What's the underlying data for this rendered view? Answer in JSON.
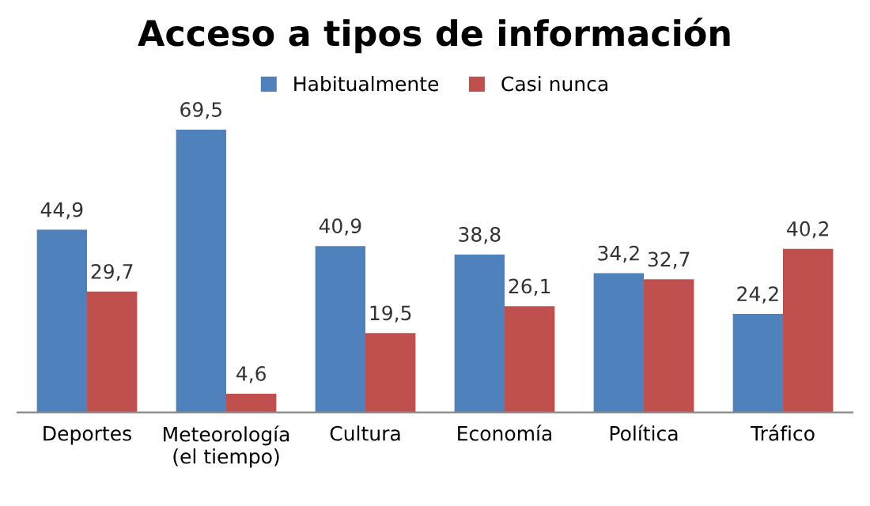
{
  "chart_data": {
    "type": "bar",
    "title": "Acceso a tipos de información",
    "categories": [
      "Deportes",
      "Meteorología\n(el tiempo)",
      "Cultura",
      "Economía",
      "Política",
      "Tráfico"
    ],
    "series": [
      {
        "name": "Habitualmente",
        "color": "#4f81bd",
        "values": [
          44.9,
          69.5,
          40.9,
          38.8,
          34.2,
          24.2
        ],
        "value_labels": [
          "44,9",
          "69,5",
          "40,9",
          "38,8",
          "34,2",
          "24,2"
        ]
      },
      {
        "name": "Casi nunca",
        "color": "#c0504d",
        "values": [
          29.7,
          4.6,
          19.5,
          26.1,
          32.7,
          40.2
        ],
        "value_labels": [
          "29,7",
          "4,6",
          "19,5",
          "26,1",
          "32,7",
          "40,2"
        ]
      }
    ],
    "legend": "top",
    "grid": false
  }
}
